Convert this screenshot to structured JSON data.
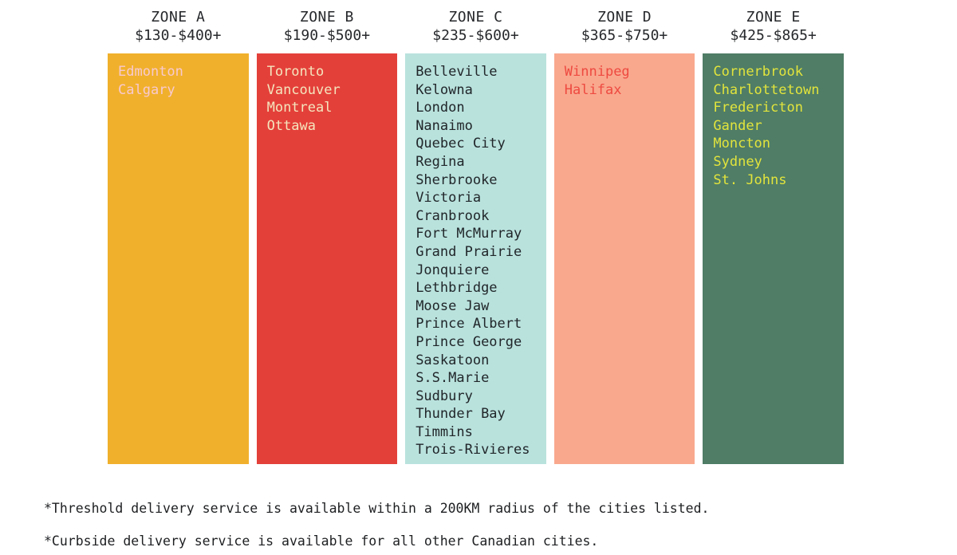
{
  "chart_data": {
    "type": "table",
    "legend_position": "none",
    "zones": [
      {
        "name": "ZONE A",
        "price_range": "$130-$400+",
        "bg_color": "#F1B02C",
        "text_color": "#F7C9CF",
        "cities": [
          "Edmonton",
          "Calgary"
        ]
      },
      {
        "name": "ZONE B",
        "price_range": "$190-$500+",
        "bg_color": "#E4403A",
        "text_color": "#F4E5BD",
        "cities": [
          "Toronto",
          "Vancouver",
          "Montreal",
          "Ottawa"
        ]
      },
      {
        "name": "ZONE C",
        "price_range": "$235-$600+",
        "bg_color": "#B9E2DD",
        "text_color": "#21262A",
        "cities": [
          "Belleville",
          "Kelowna",
          "London",
          "Nanaimo",
          "Quebec City",
          "Regina",
          "Sherbrooke",
          "Victoria",
          "Cranbrook",
          "Fort McMurray",
          "Grand Prairie",
          "Jonquiere",
          "Lethbridge",
          "Moose Jaw",
          "Prince Albert",
          "Prince George",
          "Saskatoon",
          "S.S.Marie",
          "Sudbury",
          "Thunder Bay",
          "Timmins",
          "Trois-Rivieres"
        ]
      },
      {
        "name": "ZONE D",
        "price_range": "$365-$750+",
        "bg_color": "#F9A88E",
        "text_color": "#EE4A40",
        "cities": [
          "Winnipeg",
          "Halifax"
        ]
      },
      {
        "name": "ZONE E",
        "price_range": "$425-$865+",
        "bg_color": "#4F7D66",
        "text_color": "#E2E43C",
        "cities": [
          "Cornerbrook",
          "Charlottetown",
          "Fredericton",
          "Gander",
          "Moncton",
          "Sydney",
          "St. Johns"
        ]
      }
    ],
    "notes": [
      "*Threshold delivery service is available within a 200KM radius of the cities listed.",
      "*Curbside delivery service is available for all other Canadian cities."
    ]
  }
}
